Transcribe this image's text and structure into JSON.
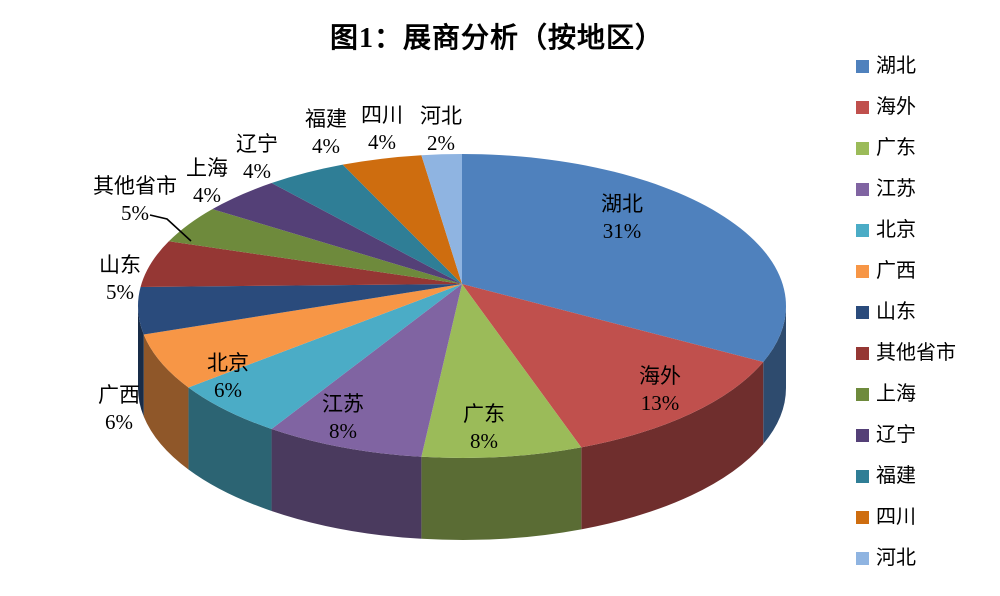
{
  "title": "图1：展商分析（按地区）",
  "chart_data": {
    "type": "pie",
    "style": "3d-pie",
    "title": "图1：展商分析（按地区）",
    "legend_position": "right",
    "start_angle_deg": 0,
    "direction": "clockwise",
    "label_format": "name + percent",
    "slices": [
      {
        "name": "湖北",
        "percent": 31,
        "pct_label": "31%",
        "color": "#4F81BD",
        "label_placement": "inside"
      },
      {
        "name": "海外",
        "percent": 13,
        "pct_label": "13%",
        "color": "#C0504D",
        "label_placement": "inside"
      },
      {
        "name": "广东",
        "percent": 8,
        "pct_label": "8%",
        "color": "#9BBB59",
        "label_placement": "inside"
      },
      {
        "name": "江苏",
        "percent": 8,
        "pct_label": "8%",
        "color": "#8064A2",
        "label_placement": "inside"
      },
      {
        "name": "北京",
        "percent": 6,
        "pct_label": "6%",
        "color": "#4BACC6",
        "label_placement": "inside"
      },
      {
        "name": "广西",
        "percent": 6,
        "pct_label": "6%",
        "color": "#F79646",
        "label_placement": "outside-left"
      },
      {
        "name": "山东",
        "percent": 5,
        "pct_label": "5%",
        "color": "#2A4B7C",
        "label_placement": "outside-left"
      },
      {
        "name": "其他省市",
        "percent": 5,
        "pct_label": "5%",
        "color": "#953734",
        "label_placement": "outside-left-with-leader"
      },
      {
        "name": "上海",
        "percent": 4,
        "pct_label": "4%",
        "color": "#6E8A3C",
        "label_placement": "outside-top"
      },
      {
        "name": "辽宁",
        "percent": 4,
        "pct_label": "4%",
        "color": "#544077",
        "label_placement": "outside-top"
      },
      {
        "name": "福建",
        "percent": 4,
        "pct_label": "4%",
        "color": "#2F7E96",
        "label_placement": "outside-top"
      },
      {
        "name": "四川",
        "percent": 4,
        "pct_label": "4%",
        "color": "#CE6D0F",
        "label_placement": "outside-top"
      },
      {
        "name": "河北",
        "percent": 2,
        "pct_label": "2%",
        "color": "#8FB4E1",
        "label_placement": "outside-top"
      }
    ]
  }
}
